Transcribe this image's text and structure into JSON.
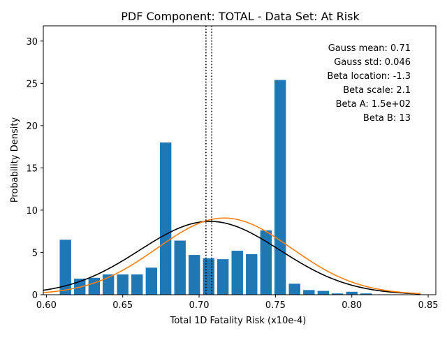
{
  "chart_data": {
    "type": "bar",
    "title": "PDF Component: TOTAL - Data Set: At Risk",
    "xlabel": "Total 1D Fatality Risk (x10e-4)",
    "ylabel": "Probability Density",
    "xlim": [
      0.598,
      0.855
    ],
    "ylim": [
      0,
      31.8
    ],
    "xticks": [
      0.6,
      0.65,
      0.7,
      0.75,
      0.8,
      0.85
    ],
    "xtick_labels": [
      "0.60",
      "0.65",
      "0.70",
      "0.75",
      "0.80",
      "0.85"
    ],
    "yticks": [
      0,
      5,
      10,
      15,
      20,
      25,
      30
    ],
    "ytick_labels": [
      "0",
      "5",
      "10",
      "15",
      "20",
      "25",
      "30"
    ],
    "bars": {
      "color": "#1f77b4",
      "centers": [
        0.6125,
        0.6219,
        0.6313,
        0.6406,
        0.65,
        0.6594,
        0.6688,
        0.6781,
        0.6875,
        0.6969,
        0.7063,
        0.7156,
        0.725,
        0.7344,
        0.7438,
        0.7531,
        0.7625,
        0.7719,
        0.7813,
        0.7906,
        0.8,
        0.8094
      ],
      "width": 0.0075,
      "values": [
        6.5,
        1.9,
        2.0,
        2.4,
        2.4,
        2.4,
        3.2,
        18.0,
        6.4,
        4.7,
        4.3,
        4.2,
        5.2,
        4.8,
        7.6,
        25.4,
        1.3,
        0.55,
        0.45,
        0.15,
        0.35,
        0.15
      ]
    },
    "series": [
      {
        "color": "#000000",
        "kind": "gauss",
        "mean": 0.707,
        "std": 0.046
      },
      {
        "color": "#ff7f0e",
        "kind": "beta",
        "mean": 0.7165,
        "std": 0.044
      }
    ],
    "vlines": [
      {
        "x": 0.7045,
        "style": "dotted",
        "color": "#000000"
      },
      {
        "x": 0.7083,
        "style": "dotted",
        "color": "#000000"
      }
    ],
    "annotations": [
      "Gauss mean: 0.71",
      "Gauss std: 0.046",
      "Beta location: -1.3",
      "Beta scale: 2.1",
      "Beta A: 1.5e+02",
      "Beta B: 13"
    ],
    "grid": false,
    "legend": "none"
  }
}
